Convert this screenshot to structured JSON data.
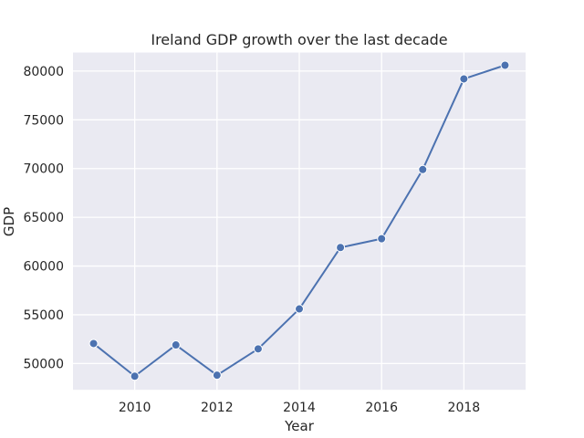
{
  "chart_data": {
    "type": "line",
    "title": "Ireland GDP growth over the last decade",
    "xlabel": "Year",
    "ylabel": "GDP",
    "x": [
      2009,
      2010,
      2011,
      2012,
      2013,
      2014,
      2015,
      2016,
      2017,
      2018,
      2019
    ],
    "series": [
      {
        "values": [
          52050,
          48700,
          51900,
          48800,
          51500,
          55600,
          61900,
          62800,
          69900,
          79200,
          80600
        ],
        "color": "#4c72b0"
      }
    ],
    "xlim": [
      2008.5,
      2019.5
    ],
    "ylim": [
      47300,
      81900
    ],
    "xticks": [
      2010,
      2012,
      2014,
      2016,
      2018
    ],
    "yticks": [
      50000,
      55000,
      60000,
      65000,
      70000,
      75000,
      80000
    ],
    "grid": true,
    "background": "#eaeaf2"
  }
}
